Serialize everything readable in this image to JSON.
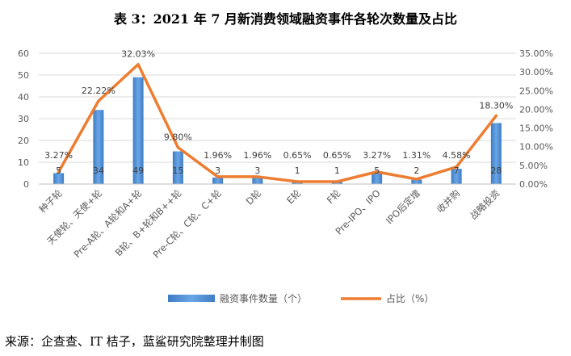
{
  "title": "表 3：2021 年 7 月新消费领域融资事件各轮次数量及占比",
  "source": "来源：企查查、IT 桔子，蓝鲨研究院整理并制图",
  "colors": {
    "bar": "#4a8bd1",
    "line": "#ed7d31",
    "grid": "#d9d9d9",
    "text": "#595959"
  },
  "chart_data": {
    "type": "bar",
    "categories": [
      "种子轮",
      "天使轮、天使+轮",
      "Pre-A轮、A轮和A+轮",
      "B轮、B+轮和B++轮",
      "Pre-C轮、C轮、C+轮",
      "D轮",
      "E轮",
      "F轮",
      "Pre-IPO、IPO",
      "IPO后定增",
      "收并购",
      "战略投资"
    ],
    "series": [
      {
        "name": "融资事件数量（个）",
        "type": "bar",
        "axis": "left",
        "values": [
          5,
          34,
          49,
          15,
          3,
          3,
          1,
          1,
          5,
          2,
          7,
          28
        ],
        "labels": [
          "5",
          "34",
          "49",
          "15",
          "3",
          "3",
          "1",
          "1",
          "5",
          "2",
          "7",
          "28"
        ]
      },
      {
        "name": "占比（%）",
        "type": "line",
        "axis": "right",
        "values": [
          3.27,
          22.22,
          32.03,
          9.8,
          1.96,
          1.96,
          0.65,
          0.65,
          3.27,
          1.31,
          4.58,
          18.3
        ],
        "labels": [
          "3.27%",
          "22.22%",
          "32.03%",
          "9.80%",
          "1.96%",
          "1.96%",
          "0.65%",
          "0.65%",
          "3.27%",
          "1.31%",
          "4.58%",
          "18.30%"
        ]
      }
    ],
    "y_left": {
      "min": 0,
      "max": 60,
      "ticks": [
        "0",
        "10",
        "20",
        "30",
        "40",
        "50",
        "60"
      ]
    },
    "y_right": {
      "min": 0,
      "max": 35,
      "ticks": [
        "0.00%",
        "5.00%",
        "10.00%",
        "15.00%",
        "20.00%",
        "25.00%",
        "30.00%",
        "35.00%"
      ]
    },
    "grid": true,
    "legend_position": "bottom"
  }
}
